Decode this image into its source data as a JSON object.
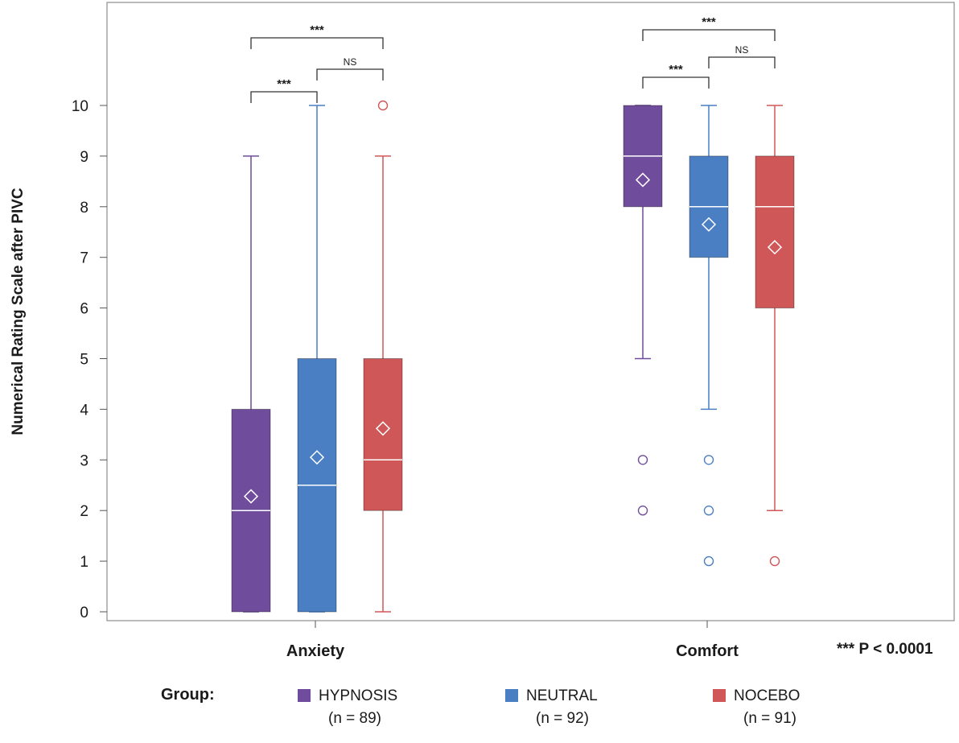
{
  "chart_data": {
    "type": "box",
    "ylabel": "Numerical Rating Scale after PIVC",
    "ylim": [
      0,
      10
    ],
    "yticks": [
      0,
      1,
      2,
      3,
      4,
      5,
      6,
      7,
      8,
      9,
      10
    ],
    "categories": [
      "Anxiety",
      "Comfort"
    ],
    "series": [
      {
        "name": "HYPNOSIS",
        "n_label": "(n = 89)",
        "color": "#6f4d9c",
        "boxes": [
          {
            "category": "Anxiety",
            "min": 0,
            "q1": 0,
            "median": 2,
            "q3": 4,
            "max": 9,
            "mean": 2.28,
            "outliers": []
          },
          {
            "category": "Comfort",
            "min": 5,
            "q1": 8,
            "median": 9,
            "q3": 10,
            "max": 10,
            "mean": 8.53,
            "outliers": [
              3,
              2
            ]
          }
        ]
      },
      {
        "name": "NEUTRAL",
        "n_label": "(n = 92)",
        "color": "#4a7fc4",
        "boxes": [
          {
            "category": "Anxiety",
            "min": 0,
            "q1": 0,
            "median": 2.5,
            "q3": 5,
            "max": 10,
            "mean": 3.05,
            "outliers": []
          },
          {
            "category": "Comfort",
            "min": 4,
            "q1": 7,
            "median": 8,
            "q3": 9,
            "max": 10,
            "mean": 7.65,
            "outliers": [
              3,
              2,
              1
            ]
          }
        ]
      },
      {
        "name": "NOCEBO",
        "n_label": "(n = 91)",
        "color": "#d05757",
        "boxes": [
          {
            "category": "Anxiety",
            "min": 0,
            "q1": 2,
            "median": 3,
            "q3": 5,
            "max": 9,
            "mean": 3.62,
            "outliers": [
              10
            ]
          },
          {
            "category": "Comfort",
            "min": 2,
            "q1": 6,
            "median": 8,
            "q3": 9,
            "max": 10,
            "mean": 7.2,
            "outliers": [
              1
            ]
          }
        ]
      }
    ],
    "comparisons": [
      {
        "category": "Anxiety",
        "from": "HYPNOSIS",
        "to": "NEUTRAL",
        "label": "***"
      },
      {
        "category": "Anxiety",
        "from": "NEUTRAL",
        "to": "NOCEBO",
        "label": "NS"
      },
      {
        "category": "Anxiety",
        "from": "HYPNOSIS",
        "to": "NOCEBO",
        "label": "***"
      },
      {
        "category": "Comfort",
        "from": "HYPNOSIS",
        "to": "NEUTRAL",
        "label": "***"
      },
      {
        "category": "Comfort",
        "from": "NEUTRAL",
        "to": "NOCEBO",
        "label": "NS"
      },
      {
        "category": "Comfort",
        "from": "HYPNOSIS",
        "to": "NOCEBO",
        "label": "***"
      }
    ],
    "legend_title": "Group:",
    "note": "*** P < 0.0001"
  }
}
